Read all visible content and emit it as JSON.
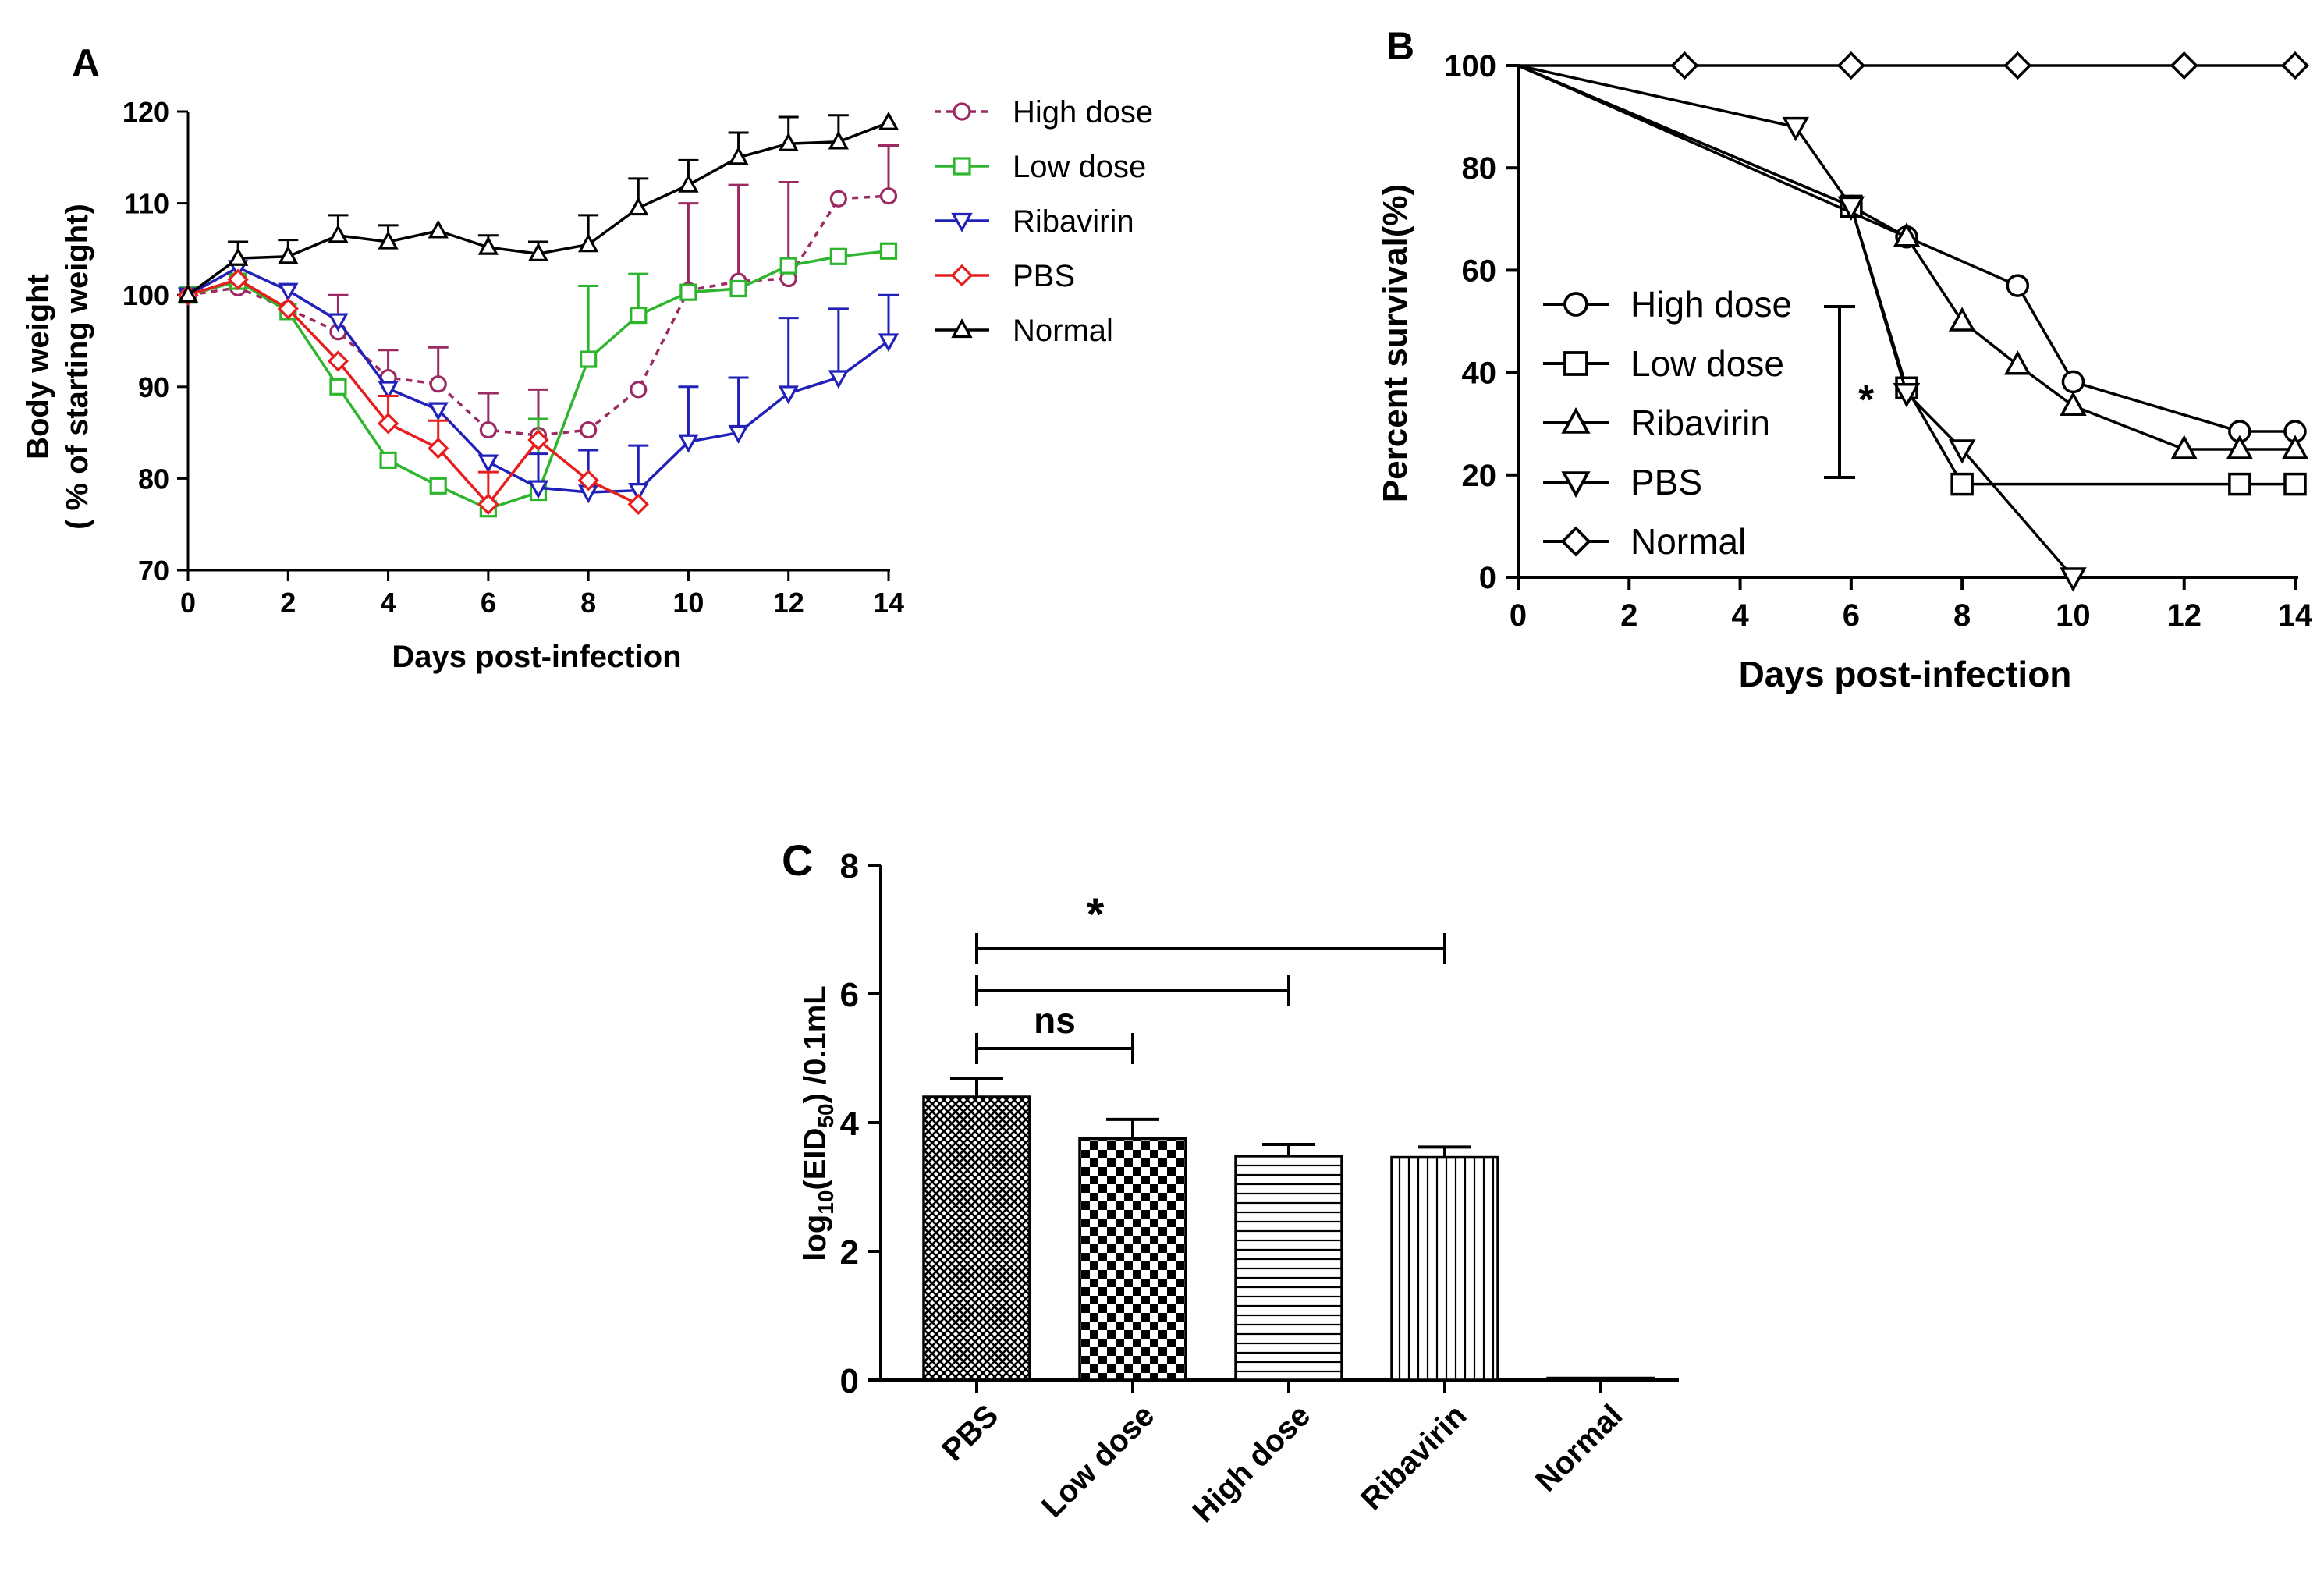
{
  "chart_data": [
    {
      "panel": "A",
      "type": "line",
      "title": "",
      "xlabel": "Days post-infection",
      "ylabel": "Body weight",
      "ylabel2": "( % of starting weight)",
      "xlim": [
        0,
        14
      ],
      "ylim": [
        70,
        120
      ],
      "xticks": [
        "0",
        "2",
        "4",
        "6",
        "8",
        "10",
        "12",
        "14"
      ],
      "yticks": [
        "70",
        "80",
        "90",
        "100",
        "110",
        "120"
      ],
      "legend_position": "right",
      "series": [
        {
          "name": "High dose",
          "color": "#9c2a62",
          "marker": "circle",
          "dashed": true,
          "x": [
            0,
            1,
            2,
            3,
            4,
            5,
            6,
            7,
            8,
            9,
            10,
            11,
            12,
            13,
            14
          ],
          "values": [
            100,
            100.8,
            98.5,
            96,
            91,
            90.3,
            85.3,
            84.7,
            85.3,
            89.7,
            100.5,
            101.5,
            101.8,
            110.5,
            110.8
          ],
          "err": [
            0,
            0,
            0,
            4,
            3,
            4,
            4,
            5,
            0,
            0,
            9.5,
            10.5,
            10.5,
            0,
            5.5
          ]
        },
        {
          "name": "Low dose",
          "color": "#2db52d",
          "marker": "square",
          "dashed": false,
          "x": [
            0,
            1,
            2,
            3,
            4,
            5,
            6,
            7,
            8,
            9,
            10,
            11,
            12,
            13,
            14
          ],
          "values": [
            100,
            101.5,
            98.2,
            90,
            82,
            79.2,
            76.7,
            78.5,
            93,
            97.8,
            100.3,
            100.7,
            103.2,
            104.2,
            104.8
          ],
          "err": [
            0,
            0,
            0,
            0,
            0,
            0,
            0,
            8,
            8,
            4.5,
            0,
            0,
            0,
            0,
            0
          ]
        },
        {
          "name": "Ribavirin",
          "color": "#2121b8",
          "marker": "triangle-down",
          "dashed": false,
          "x": [
            0,
            1,
            2,
            3,
            4,
            5,
            6,
            7,
            8,
            9,
            10,
            11,
            12,
            13,
            14
          ],
          "values": [
            100,
            103,
            100.5,
            97.2,
            89.8,
            87.5,
            81.8,
            79,
            78.5,
            78.7,
            84,
            85,
            89.3,
            91,
            95
          ],
          "err": [
            0,
            0,
            0,
            0,
            0,
            0,
            0,
            3.7,
            4.6,
            4.9,
            6,
            6,
            8.2,
            7.5,
            5
          ]
        },
        {
          "name": "PBS",
          "color": "#e81d1d",
          "marker": "diamond",
          "dashed": false,
          "x": [
            0,
            1,
            2,
            3,
            4,
            5,
            6,
            7,
            8,
            9
          ],
          "values": [
            100,
            101.7,
            98.5,
            92.8,
            86,
            83.3,
            77.2,
            84.2,
            79.8,
            77.2
          ],
          "err": [
            0,
            0,
            0,
            0,
            3,
            3,
            3.5,
            0,
            0,
            0
          ]
        },
        {
          "name": "Normal",
          "color": "#000000",
          "marker": "triangle-up",
          "dashed": false,
          "x": [
            0,
            1,
            2,
            3,
            4,
            5,
            6,
            7,
            8,
            9,
            10,
            11,
            12,
            13,
            14
          ],
          "values": [
            100,
            104,
            104.2,
            106.5,
            105.8,
            107,
            105.2,
            104.5,
            105.5,
            109.5,
            112,
            115,
            116.5,
            116.7,
            118.8
          ],
          "err": [
            0,
            1.8,
            1.8,
            2.2,
            1.8,
            0,
            1.3,
            1.3,
            3.2,
            3.2,
            2.7,
            2.7,
            2.9,
            2.9,
            0
          ]
        }
      ]
    },
    {
      "panel": "B",
      "type": "line",
      "title": "",
      "xlabel": "Days post-infection",
      "ylabel": "Percent survival(%)",
      "xlim": [
        0,
        14
      ],
      "ylim": [
        0,
        100
      ],
      "xticks": [
        "0",
        "2",
        "4",
        "6",
        "8",
        "10",
        "12",
        "14"
      ],
      "yticks": [
        "0",
        "20",
        "40",
        "60",
        "80",
        "100"
      ],
      "legend_position": "center-left",
      "significance": "*",
      "series": [
        {
          "name": "High dose",
          "marker": "circle",
          "x": [
            0,
            6,
            7,
            9,
            10,
            13,
            14
          ],
          "values": [
            100,
            72.5,
            66.5,
            57,
            38.2,
            28.5,
            28.5
          ]
        },
        {
          "name": "Low dose",
          "marker": "square",
          "x": [
            0,
            6,
            7,
            8,
            13,
            14
          ],
          "values": [
            100,
            72.5,
            37,
            18.2,
            18.2,
            18.2
          ]
        },
        {
          "name": "Ribavirin",
          "marker": "triangle-up",
          "x": [
            0,
            7,
            8,
            9,
            10,
            12,
            13,
            14
          ],
          "values": [
            100,
            66.5,
            50,
            41.5,
            33.5,
            25,
            25,
            25
          ]
        },
        {
          "name": "PBS",
          "marker": "triangle-down",
          "x": [
            0,
            5,
            6,
            7,
            8,
            10
          ],
          "values": [
            100,
            88,
            72.5,
            36,
            25,
            0
          ]
        },
        {
          "name": "Normal",
          "marker": "diamond",
          "x": [
            0,
            3,
            6,
            9,
            12,
            14
          ],
          "values": [
            100,
            100,
            100,
            100,
            100,
            100
          ]
        }
      ]
    },
    {
      "panel": "C",
      "type": "bar",
      "title": "",
      "xlabel": "",
      "ylabel": "log10(EID50) /0.1mL",
      "ylabel_parts": {
        "pre": "log",
        "sub1": "10",
        "mid": "(EID",
        "sub2": "50",
        "post": ") /0.1mL"
      },
      "ylim": [
        0,
        8
      ],
      "yticks": [
        "0",
        "2",
        "4",
        "6",
        "8"
      ],
      "categories": [
        "PBS",
        "Low dose",
        "High dose",
        "Ribavirin",
        "Normal"
      ],
      "values": [
        4.4,
        3.75,
        3.48,
        3.46,
        0.03
      ],
      "err": [
        0.28,
        0.3,
        0.18,
        0.16,
        0
      ],
      "significance": [
        {
          "from": "PBS",
          "to": "Low dose",
          "label": "ns"
        },
        {
          "from": "PBS",
          "to": "High dose",
          "label": ""
        },
        {
          "from": "PBS",
          "to": "Ribavirin",
          "label": "*"
        }
      ]
    }
  ]
}
